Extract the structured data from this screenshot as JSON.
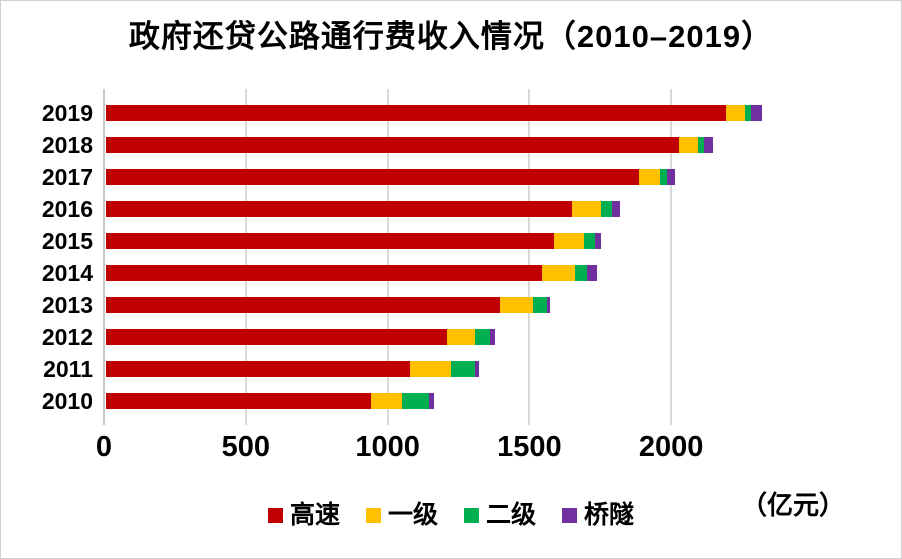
{
  "title": "政府还贷公路通行费收入情况（2010–2019）",
  "unit_label": "（亿元）",
  "chart_data": {
    "type": "bar",
    "orientation": "horizontal",
    "stacked": true,
    "title": "政府还贷公路通行费收入情况（2010–2019）",
    "xlabel": "（亿元）",
    "ylabel": "",
    "categories": [
      "2019",
      "2018",
      "2017",
      "2016",
      "2015",
      "2014",
      "2013",
      "2012",
      "2011",
      "2010"
    ],
    "series": [
      {
        "name": "高速",
        "color": "#C00000",
        "values": [
          2185,
          2020,
          1878,
          1643,
          1578,
          1538,
          1388,
          1203,
          1073,
          935
        ]
      },
      {
        "name": "一级",
        "color": "#FFC000",
        "values": [
          67,
          67,
          75,
          104,
          109,
          114,
          116,
          97,
          143,
          110
        ]
      },
      {
        "name": "二级",
        "color": "#00B050",
        "values": [
          21,
          20,
          24,
          36,
          36,
          43,
          50,
          55,
          86,
          94
        ]
      },
      {
        "name": "桥隧",
        "color": "#7030A0",
        "values": [
          39,
          35,
          29,
          29,
          24,
          35,
          13,
          16,
          15,
          17
        ]
      }
    ],
    "totals": [
      2312,
      2142,
      2006,
      1812,
      1747,
      1730,
      1567,
      1371,
      1317,
      1156
    ],
    "xticks": [
      0,
      500,
      1000,
      1500,
      2000
    ],
    "xlim": [
      0,
      2750
    ],
    "grid": "vertical",
    "gridline_color": "#D9D9D9",
    "axis_line_color": "#C8C8C8",
    "legend_position": "bottom",
    "legend_entries": [
      "高速",
      "一级",
      "二级",
      "桥隧"
    ]
  }
}
